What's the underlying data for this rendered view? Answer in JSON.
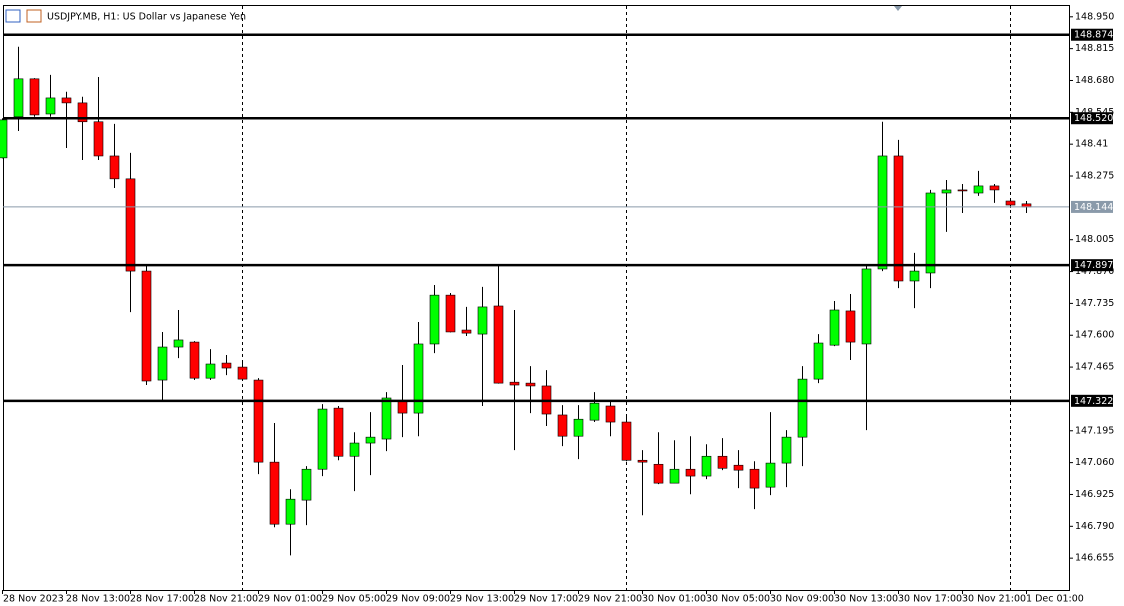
{
  "chart_data": {
    "type": "candlestick",
    "title": "USDJPY.MB, H1:  US Dollar vs Japanese Yen",
    "categories": [
      "28 Nov 2023",
      null,
      null,
      null,
      "28 Nov 13:00",
      null,
      null,
      null,
      "28 Nov 17:00",
      null,
      null,
      null,
      "28 Nov 21:00",
      null,
      null,
      null,
      "29 Nov 01:00",
      null,
      null,
      null,
      "29 Nov 05:00",
      null,
      null,
      null,
      "29 Nov 09:00",
      null,
      null,
      null,
      "29 Nov 13:00",
      null,
      null,
      null,
      "29 Nov 17:00",
      null,
      null,
      null,
      "29 Nov 21:00",
      null,
      null,
      null,
      "30 Nov 01:00",
      null,
      null,
      null,
      "30 Nov 05:00",
      null,
      null,
      null,
      "30 Nov 09:00",
      null,
      null,
      null,
      "30 Nov 13:00",
      null,
      null,
      null,
      "30 Nov 17:00",
      null,
      null,
      null,
      "30 Nov 21:00",
      null,
      null,
      null,
      "1 Dec 01:00"
    ],
    "open": [
      148.352,
      148.526,
      148.687,
      148.538,
      148.606,
      148.585,
      148.505,
      148.36,
      148.263,
      147.872,
      147.41,
      147.55,
      147.571,
      147.418,
      147.482,
      147.465,
      147.41,
      147.062,
      146.799,
      146.901,
      147.032,
      147.291,
      147.087,
      147.143,
      147.16,
      147.321,
      147.27,
      147.563,
      147.77,
      147.622,
      147.605,
      147.724,
      147.401,
      147.397,
      147.385,
      147.262,
      147.172,
      147.24,
      147.3,
      147.232,
      147.07,
      147.053,
      146.973,
      147.032,
      147.003,
      147.087,
      147.049,
      147.032,
      146.956,
      147.058,
      147.168,
      147.414,
      147.558,
      147.703,
      147.563,
      147.881,
      148.36,
      147.83,
      147.864,
      148.203,
      148.216,
      148.203,
      148.233,
      148.169,
      148.157
    ],
    "high": [
      148.52,
      148.823,
      148.69,
      148.704,
      148.632,
      148.611,
      148.695,
      148.496,
      148.373,
      147.902,
      147.614,
      147.707,
      147.575,
      147.541,
      147.516,
      147.495,
      147.418,
      147.228,
      146.947,
      147.045,
      147.308,
      147.3,
      147.189,
      147.274,
      147.359,
      147.474,
      147.656,
      147.813,
      147.779,
      147.72,
      147.805,
      147.902,
      147.707,
      147.469,
      147.452,
      147.304,
      147.304,
      147.359,
      147.321,
      147.257,
      147.113,
      147.189,
      147.155,
      147.172,
      147.138,
      147.164,
      147.113,
      147.066,
      147.274,
      147.198,
      147.469,
      147.605,
      147.745,
      147.775,
      147.898,
      148.505,
      148.428,
      147.949,
      148.216,
      148.258,
      148.241,
      148.297,
      148.241,
      148.17,
      148.169
    ],
    "low": [
      148.35,
      148.466,
      148.526,
      148.526,
      148.394,
      148.343,
      148.343,
      148.224,
      147.698,
      147.389,
      147.325,
      147.503,
      147.41,
      147.41,
      147.431,
      147.41,
      147.011,
      146.786,
      146.667,
      146.795,
      147.003,
      147.07,
      146.939,
      147.007,
      147.109,
      147.168,
      147.172,
      147.524,
      147.612,
      147.597,
      147.3,
      147.395,
      147.113,
      147.27,
      147.215,
      147.13,
      147.075,
      147.232,
      147.172,
      147.066,
      146.837,
      146.969,
      146.973,
      146.926,
      146.99,
      147.028,
      146.952,
      146.863,
      146.922,
      146.956,
      147.045,
      147.397,
      147.554,
      147.495,
      147.198,
      147.872,
      147.8,
      147.715,
      147.8,
      148.038,
      148.118,
      148.191,
      148.161,
      148.14,
      148.118
    ],
    "close": [
      148.513,
      148.687,
      148.534,
      148.606,
      148.585,
      148.505,
      148.36,
      148.263,
      147.872,
      147.406,
      147.55,
      147.58,
      147.418,
      147.478,
      147.461,
      147.414,
      147.062,
      146.799,
      146.905,
      147.032,
      147.287,
      147.087,
      147.143,
      147.168,
      147.334,
      147.27,
      147.563,
      147.77,
      147.614,
      147.609,
      147.72,
      147.397,
      147.389,
      147.385,
      147.266,
      147.172,
      147.244,
      147.312,
      147.232,
      147.07,
      147.062,
      146.973,
      147.032,
      147.003,
      147.087,
      147.036,
      147.028,
      146.952,
      147.058,
      147.168,
      147.414,
      147.567,
      147.707,
      147.571,
      147.881,
      148.36,
      147.83,
      147.872,
      148.203,
      148.216,
      148.212,
      148.233,
      148.216,
      148.152,
      148.144
    ],
    "up_color": "#00ff00",
    "down_color": "#ff0000",
    "ylim": [
      146.52,
      149.0
    ],
    "yticks": [
      {
        "value": 148.95,
        "label": "148.950"
      },
      148.815,
      {
        "value": 148.68,
        "label": "148.680"
      },
      148.545,
      148.41,
      148.275,
      148.005,
      {
        "value": 147.87,
        "label": "147.870"
      },
      147.735,
      {
        "value": 147.6,
        "label": "147.600"
      },
      147.465,
      147.195,
      {
        "value": 147.06,
        "label": "147.060"
      },
      146.925,
      {
        "value": 146.79,
        "label": "146.790"
      },
      146.655
    ],
    "levels": [
      148.874,
      {
        "value": 148.52,
        "label": "148.520"
      },
      147.897,
      147.322
    ],
    "bid": 148.144
  }
}
